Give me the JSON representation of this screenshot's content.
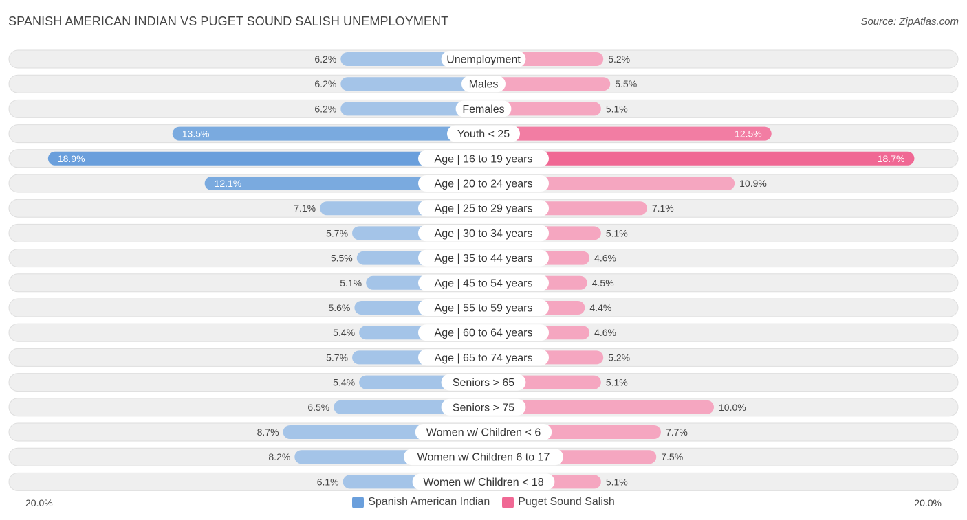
{
  "title": "SPANISH AMERICAN INDIAN VS PUGET SOUND SALISH UNEMPLOYMENT",
  "source": "Source: ZipAtlas.com",
  "colors": {
    "left_light": "#a4c4e8",
    "left_dark": "#6a9fdc",
    "right_light": "#f5a6c0",
    "right_dark": "#f06894",
    "row_bg": "#efefef",
    "row_border": "#dedede"
  },
  "chart_data": {
    "type": "bar",
    "orientation": "horizontal-diverging",
    "axis_max": 20.0,
    "axis_left_label": "20.0%",
    "axis_right_label": "20.0%",
    "categories": [
      "Unemployment",
      "Males",
      "Females",
      "Youth < 25",
      "Age | 16 to 19 years",
      "Age | 20 to 24 years",
      "Age | 25 to 29 years",
      "Age | 30 to 34 years",
      "Age | 35 to 44 years",
      "Age | 45 to 54 years",
      "Age | 55 to 59 years",
      "Age | 60 to 64 years",
      "Age | 65 to 74 years",
      "Seniors > 65",
      "Seniors > 75",
      "Women w/ Children < 6",
      "Women w/ Children 6 to 17",
      "Women w/ Children < 18"
    ],
    "series": [
      {
        "name": "Spanish American Indian",
        "values": [
          6.2,
          6.2,
          6.2,
          13.5,
          18.9,
          12.1,
          7.1,
          5.7,
          5.5,
          5.1,
          5.6,
          5.4,
          5.7,
          5.4,
          6.5,
          8.7,
          8.2,
          6.1
        ],
        "labels": [
          "6.2%",
          "6.2%",
          "6.2%",
          "13.5%",
          "18.9%",
          "12.1%",
          "7.1%",
          "5.7%",
          "5.5%",
          "5.1%",
          "5.6%",
          "5.4%",
          "5.7%",
          "5.4%",
          "6.5%",
          "8.7%",
          "8.2%",
          "6.1%"
        ]
      },
      {
        "name": "Puget Sound Salish",
        "values": [
          5.2,
          5.5,
          5.1,
          12.5,
          18.7,
          10.9,
          7.1,
          5.1,
          4.6,
          4.5,
          4.4,
          4.6,
          5.2,
          5.1,
          10.0,
          7.7,
          7.5,
          5.1
        ],
        "labels": [
          "5.2%",
          "5.5%",
          "5.1%",
          "12.5%",
          "18.7%",
          "10.9%",
          "7.1%",
          "5.1%",
          "4.6%",
          "4.5%",
          "4.4%",
          "4.6%",
          "5.2%",
          "5.1%",
          "10.0%",
          "7.7%",
          "7.5%",
          "5.1%"
        ]
      }
    ],
    "legend": [
      "Spanish American Indian",
      "Puget Sound Salish"
    ],
    "legend_position": "bottom-center"
  }
}
